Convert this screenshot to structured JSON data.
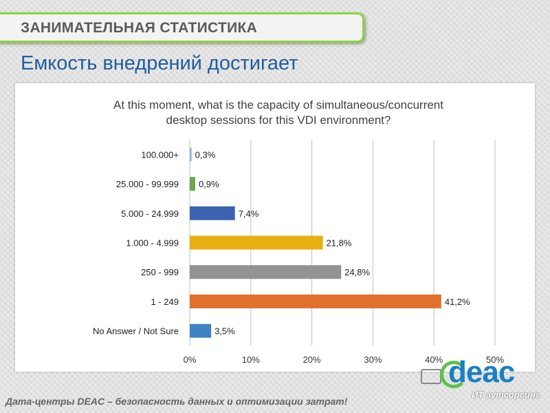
{
  "header": {
    "banner_title": "ЗАНИМАТЕЛЬНАЯ СТАТИСТИКА"
  },
  "slide": {
    "subtitle": "Емкость внедрений достигает"
  },
  "chart_data": {
    "type": "bar",
    "orientation": "horizontal",
    "title_lines": [
      "At this moment, what is the capacity of simultaneous/concurrent",
      "desktop sessions for this VDI environment?"
    ],
    "categories": [
      "100.000+",
      "25.000 - 99.999",
      "5.000 - 24.999",
      "1.000 - 4.999",
      "250 - 999",
      "1 - 249",
      "No Answer / Not Sure"
    ],
    "values": [
      0.3,
      0.9,
      7.4,
      21.8,
      24.8,
      41.2,
      3.5
    ],
    "value_labels": [
      "0,3%",
      "0,9%",
      "7,4%",
      "21,8%",
      "24,8%",
      "41,2%",
      "3,5%"
    ],
    "colors": [
      "#8db4e2",
      "#6aa84f",
      "#3c62b0",
      "#e6b012",
      "#939393",
      "#e0702c",
      "#3f83c0"
    ],
    "xlim": [
      0,
      50
    ],
    "xticks": [
      0,
      10,
      20,
      30,
      40,
      50
    ],
    "xtick_labels": [
      "0%",
      "10%",
      "20%",
      "30%",
      "40%",
      "50%"
    ],
    "grid": true
  },
  "footer": {
    "text": "Дата-центры DEAC – безопасность данных и оптимизации затрат!"
  },
  "logo": {
    "word": "deac",
    "tagline": "ИТ аутсорсинг"
  }
}
